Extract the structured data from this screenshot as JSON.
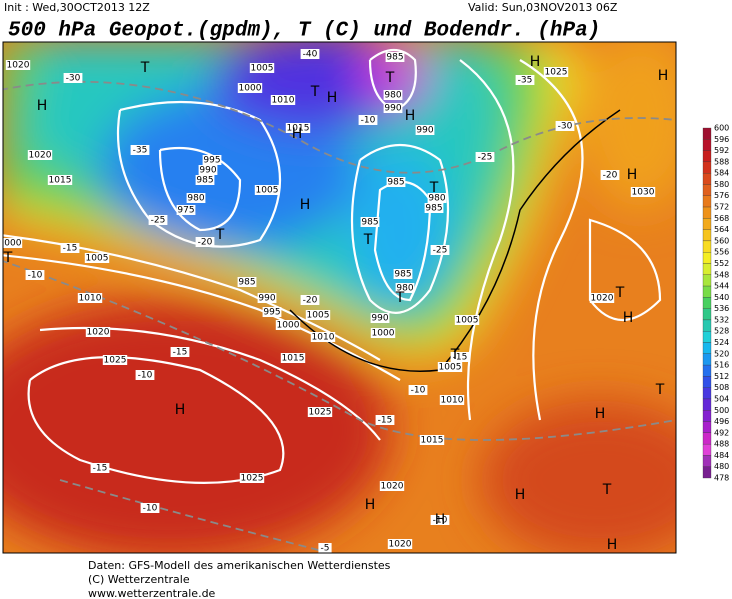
{
  "header": {
    "init": "Init : Wed,30OCT2013 12Z",
    "valid": "Valid: Sun,03NOV2013 06Z",
    "title": "500 hPa Geopot.(gpdm), T (C) und Bodendr. (hPa)"
  },
  "legend": {
    "levels": [
      600,
      596,
      592,
      588,
      584,
      580,
      576,
      572,
      568,
      564,
      560,
      556,
      552,
      548,
      544,
      540,
      536,
      532,
      528,
      524,
      520,
      516,
      512,
      508,
      504,
      500,
      496,
      492,
      488,
      484,
      480,
      478
    ],
    "colors": [
      "#9e1030",
      "#b8122a",
      "#c81e1e",
      "#d2321c",
      "#da4a1c",
      "#e0601e",
      "#e87a1c",
      "#ee921a",
      "#f2aa1c",
      "#f6c41e",
      "#f8dc22",
      "#f4ee24",
      "#d8ee30",
      "#a8e63c",
      "#78dc48",
      "#48d060",
      "#30c888",
      "#28c8b0",
      "#20d0d8",
      "#18b8ee",
      "#1c98f0",
      "#2470ee",
      "#3050e8",
      "#4838e0",
      "#6428d8",
      "#8420d0",
      "#a820cc",
      "#cc28c8",
      "#e040d8",
      "#a030b8",
      "#782090"
    ]
  },
  "map": {
    "isobar_labels": [
      "1020",
      "1020",
      "1015",
      "1005",
      "1000",
      "1010",
      "1015",
      "995",
      "990",
      "985",
      "980",
      "975",
      "1005",
      "985",
      "990",
      "995",
      "1000",
      "1005",
      "1010",
      "1015",
      "1010",
      "1020",
      "1025",
      "1025",
      "1025",
      "1020",
      "1020",
      "1015",
      "1010",
      "1005",
      "1005",
      "985",
      "980",
      "990",
      "990",
      "985",
      "980",
      "985",
      "985",
      "985",
      "980",
      "990",
      "1000",
      "1025",
      "1020",
      "1030",
      "1000",
      "1005"
    ],
    "temperature_labels": [
      "-30",
      "-35",
      "-25",
      "-20",
      "-15",
      "-10",
      "-10",
      "-15",
      "-10",
      "-15",
      "-10",
      "-5",
      "-35",
      "-30",
      "-25",
      "-20",
      "-25",
      "-15",
      "-10",
      "-20",
      "-10",
      "-40",
      "-15"
    ],
    "centers": [
      "H",
      "T",
      "H",
      "T",
      "H",
      "T",
      "H",
      "T",
      "H",
      "T",
      "T",
      "T",
      "H",
      "H",
      "H",
      "T",
      "T",
      "H",
      "T",
      "H",
      "H",
      "H",
      "H",
      "H",
      "T",
      "H",
      "T"
    ]
  },
  "footer": {
    "source": "Daten: GFS-Modell des amerikanischen Wetterdienstes",
    "copyright": "(C) Wetterzentrale",
    "url": "www.wetterzentrale.de"
  }
}
